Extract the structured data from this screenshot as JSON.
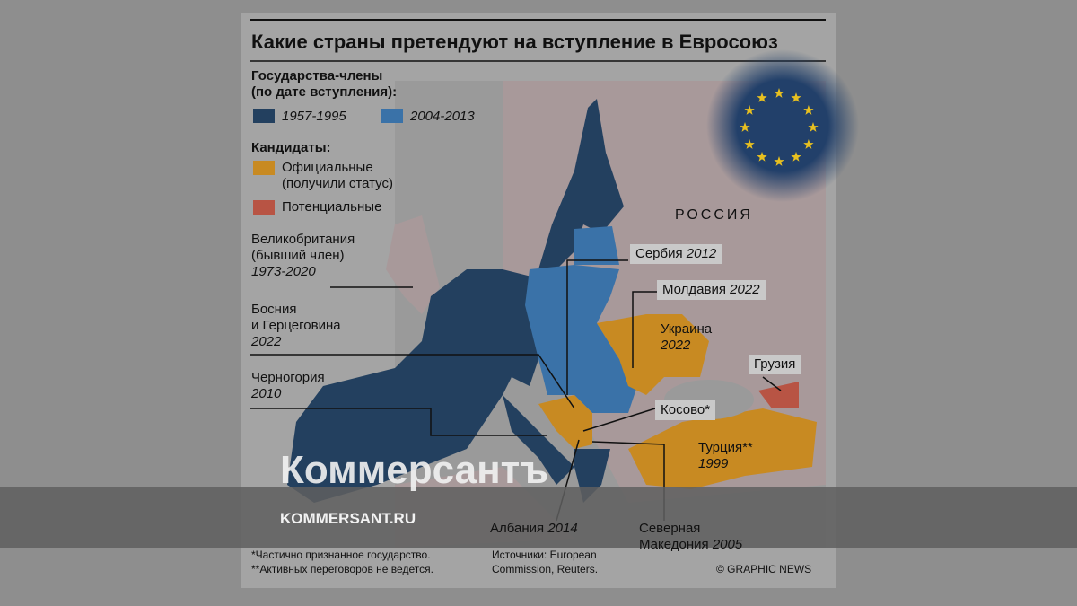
{
  "title": "Какие страны претендуют на вступление в Евросоюз",
  "legend": {
    "members_heading": [
      "Государства-члены",
      "(по дате вступления):"
    ],
    "members": [
      "1957-1995",
      "2004-2013"
    ],
    "candidates_heading": "Кандидаты:",
    "official": [
      "Официальные",
      "(получили статус)"
    ],
    "potential": "Потенциальные"
  },
  "russia": "РОССИЯ",
  "labels": [
    {
      "name": [
        "Великобритания",
        "(бывший член)"
      ],
      "year": "1973-2020"
    },
    {
      "name": [
        "Босния",
        "и Герцеговина"
      ],
      "year": "2022"
    },
    {
      "name": [
        "Черногория"
      ],
      "year": "2010"
    },
    {
      "name": [
        "Сербия"
      ],
      "year": "2012"
    },
    {
      "name": [
        "Молдавия"
      ],
      "year": "2022"
    },
    {
      "name": [
        "Украина"
      ],
      "year": "2022"
    },
    {
      "name": [
        "Грузия"
      ]
    },
    {
      "name": [
        "Косово*"
      ]
    },
    {
      "name": [
        "Турция**"
      ],
      "year": "1999"
    },
    {
      "name": [
        "Албания"
      ],
      "year": "2014"
    },
    {
      "name": [
        "Северная",
        "Македония"
      ],
      "year": "2005"
    }
  ],
  "footnotes": [
    "*Частично признанное государство.",
    "**Активных переговоров не ведется."
  ],
  "sources": [
    "Источники: European",
    "Commission, Reuters."
  ],
  "credit": "© GRAPHIC NEWS",
  "watermark": {
    "brand": "Коммерсантъ",
    "url": "KOMMERSANT.RU"
  }
}
